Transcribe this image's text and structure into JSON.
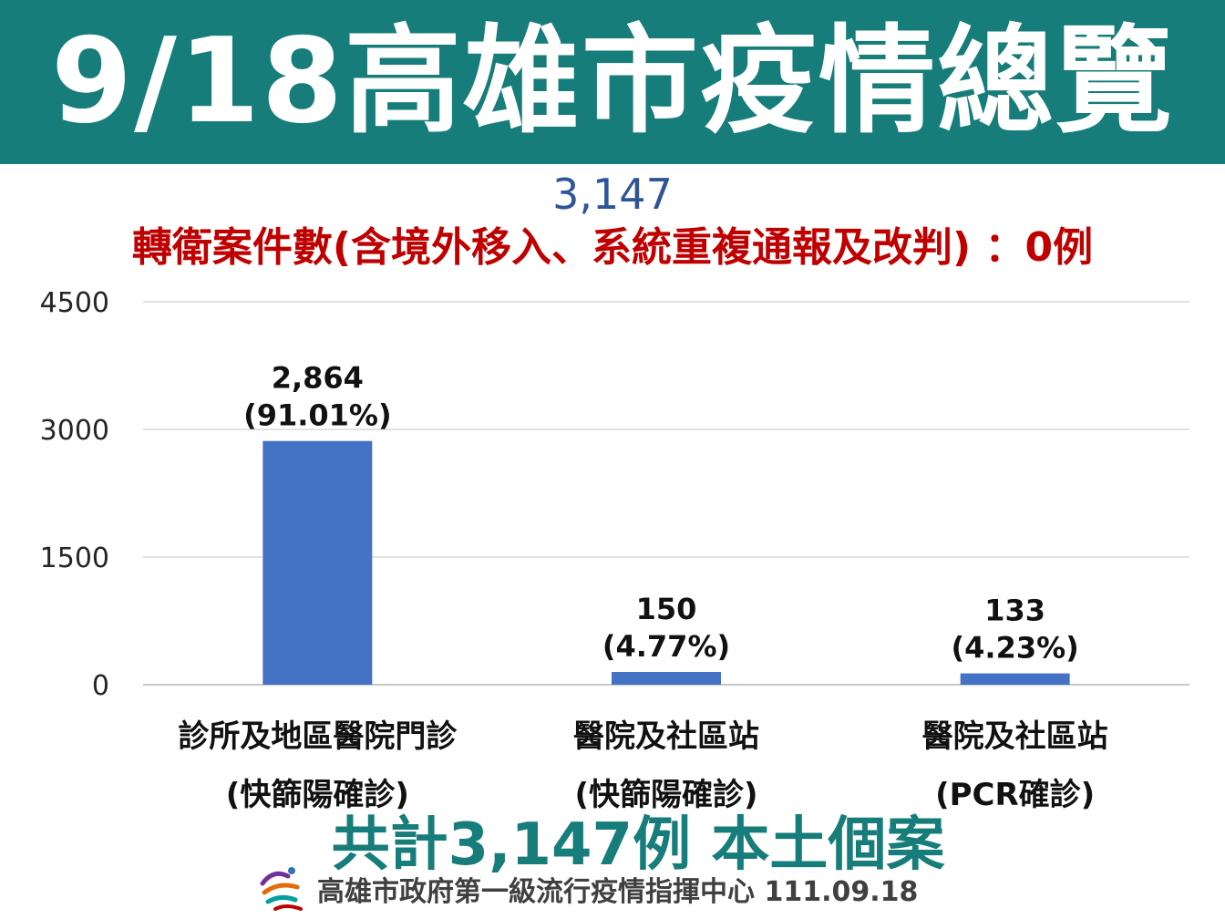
{
  "header": {
    "title": "9/18高雄市疫情總覽"
  },
  "total_top": "3,147",
  "transfer_note": "轉衛案件數(含境外移入、系統重複通報及改判) ：0例",
  "chart_data": {
    "type": "bar",
    "categories": [
      {
        "line1": "診所及地區醫院門診",
        "line2": "(快篩陽確診)"
      },
      {
        "line1": "醫院及社區站",
        "line2": "(快篩陽確診)"
      },
      {
        "line1": "醫院及社區站",
        "line2": "(PCR確診)"
      }
    ],
    "values": [
      2864,
      150,
      133
    ],
    "value_labels": [
      "2,864",
      "150",
      "133"
    ],
    "percent_labels": [
      "(91.01%)",
      "(4.77%)",
      "(4.23%)"
    ],
    "yticks": [
      "0",
      "1500",
      "3000",
      "4500"
    ],
    "ylim": [
      0,
      4500
    ],
    "grid": true,
    "bar_color": "#4472c4"
  },
  "summary": "共計3,147例 本土個案",
  "footer": {
    "text": "高雄市政府第一級流行疫情指揮中心 111.09.18",
    "logo_icon": "kaohsiung-logo-icon"
  }
}
